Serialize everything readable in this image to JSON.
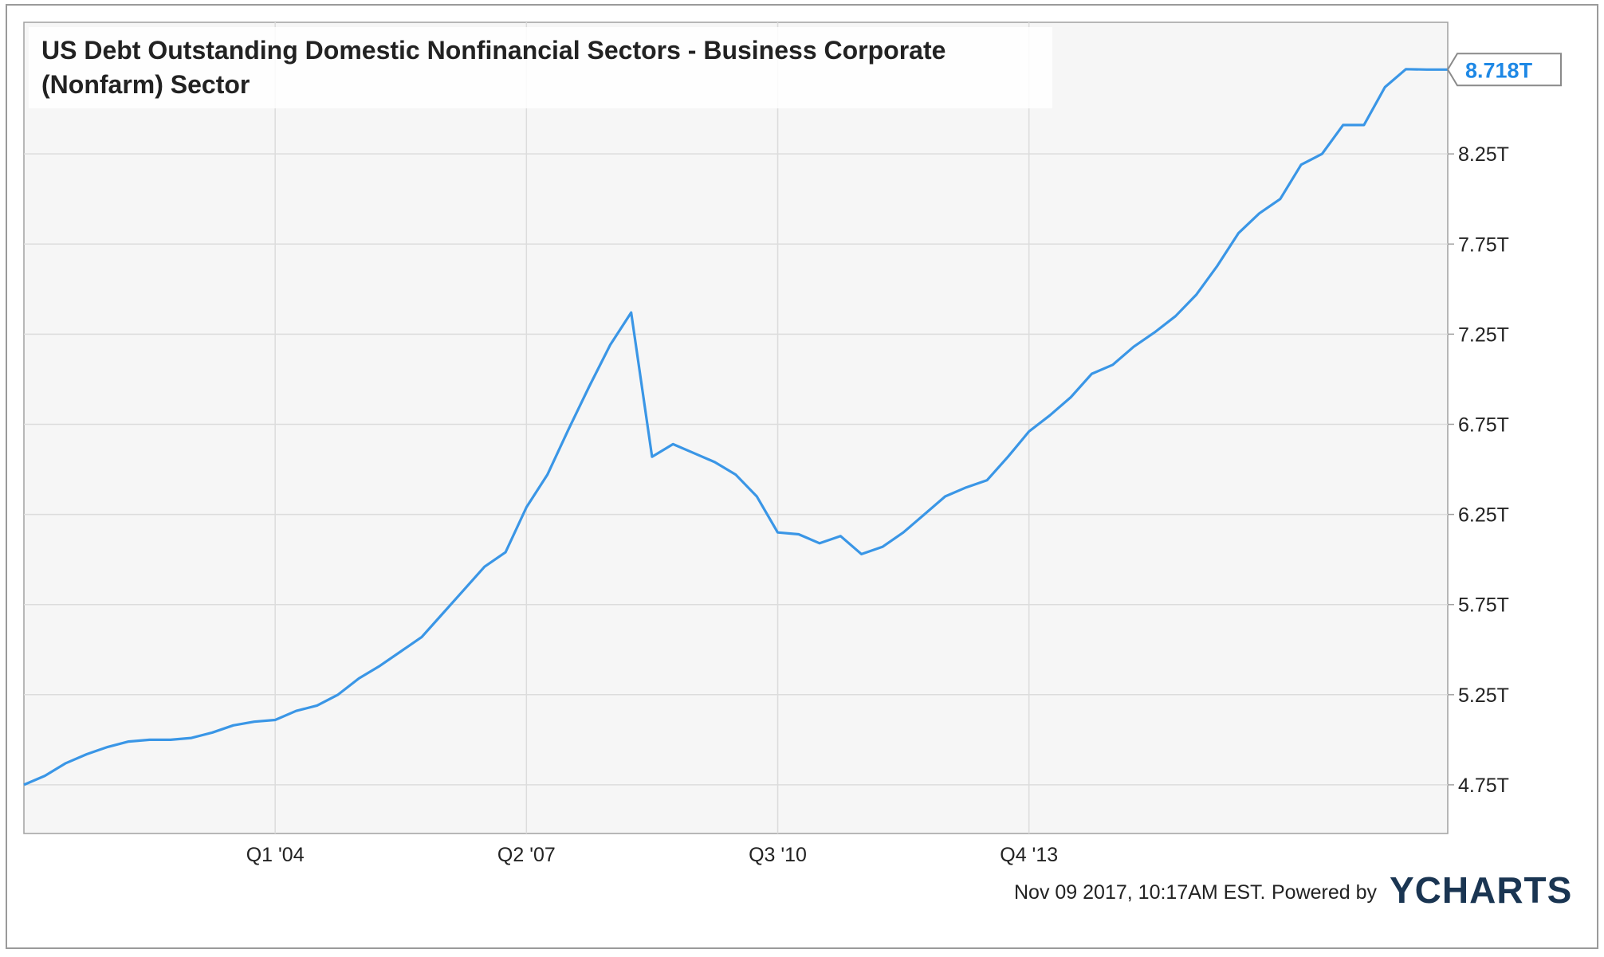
{
  "chart_data": {
    "type": "line",
    "title": "US Debt Outstanding Domestic Nonfinancial Sectors - Business Corporate (Nonfarm) Sector",
    "title_lines": [
      "US Debt Outstanding Domestic Nonfinancial Sectors - Business Corporate",
      "(Nonfarm) Sector"
    ],
    "xlabel": "",
    "ylabel": "",
    "ylim": [
      4.48,
      8.98
    ],
    "y_unit_suffix": "T",
    "y_ticks": [
      4.75,
      5.25,
      5.75,
      6.25,
      6.75,
      7.25,
      7.75,
      8.25
    ],
    "y_tick_labels": [
      "4.75T",
      "5.25T",
      "5.75T",
      "6.25T",
      "6.75T",
      "7.25T",
      "7.75T",
      "8.25T"
    ],
    "x_ticks": [
      12,
      24,
      36,
      48
    ],
    "x_tick_labels": [
      "Q1  '04",
      "Q2  '07",
      "Q3  '10",
      "Q4  '13"
    ],
    "xlim": [
      0,
      61
    ],
    "grid": true,
    "last_value_label": "8.718T",
    "series": [
      {
        "color": "#3a96e6",
        "x": [
          0,
          1,
          2,
          3,
          4,
          5,
          6,
          7,
          8,
          9,
          10,
          11,
          12,
          13,
          14,
          15,
          16,
          17,
          18,
          19,
          20,
          21,
          22,
          23,
          24,
          25,
          26,
          27,
          28,
          29,
          30,
          31,
          32,
          33,
          34,
          35,
          36,
          37,
          38,
          39,
          40,
          41,
          42,
          43,
          44,
          45,
          46,
          47,
          48,
          49,
          50,
          51,
          52,
          53,
          54,
          55,
          56,
          57,
          58,
          59,
          60,
          61
        ],
        "values": [
          4.75,
          4.8,
          4.87,
          4.92,
          4.96,
          4.99,
          5.0,
          5.0,
          5.01,
          5.04,
          5.08,
          5.1,
          5.11,
          5.16,
          5.19,
          5.25,
          5.34,
          5.41,
          5.49,
          5.57,
          5.7,
          5.83,
          5.96,
          6.04,
          6.29,
          6.47,
          6.72,
          6.96,
          7.19,
          7.37,
          6.57,
          6.64,
          6.59,
          6.54,
          6.47,
          6.35,
          6.15,
          6.14,
          6.09,
          6.13,
          6.03,
          6.07,
          6.15,
          6.25,
          6.35,
          6.4,
          6.44,
          6.57,
          6.71,
          6.8,
          6.9,
          7.03,
          7.08,
          7.18,
          7.26,
          7.35,
          7.47,
          7.63,
          7.81,
          7.92,
          8.0,
          8.19
        ]
      }
    ],
    "series_tail": {
      "x": [
        62,
        63,
        64,
        65,
        66,
        67,
        68
      ],
      "values": [
        8.25,
        8.41,
        8.41,
        8.62,
        8.72,
        8.718,
        8.718
      ]
    }
  },
  "footer": {
    "timestamp": "Nov 09 2017, 10:17AM EST.",
    "powered_by": "Powered by",
    "brand": "YCHARTS"
  },
  "colors": {
    "line": "#3a96e6",
    "badge_text": "#1e88e5",
    "plot_bg": "#f6f6f6",
    "grid": "#dcdcdc",
    "text": "#222222",
    "brand": "#1a3552"
  }
}
